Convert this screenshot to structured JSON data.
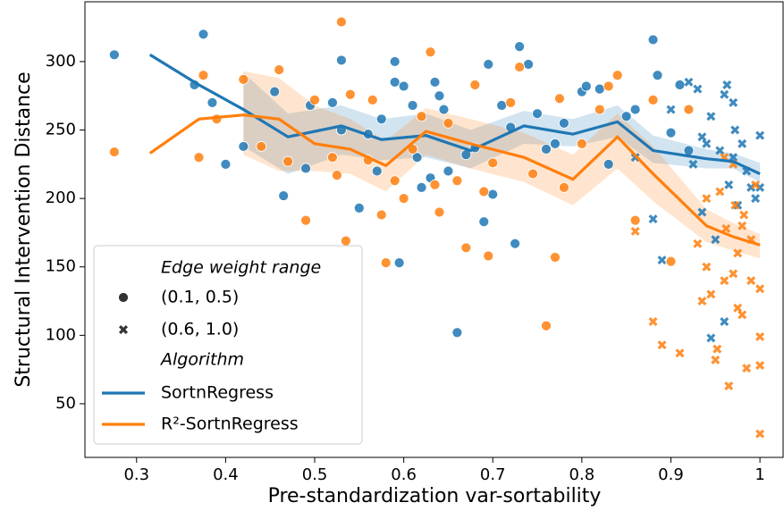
{
  "chart_data": {
    "type": "scatter",
    "x_label": "Pre-standardization var-sortability",
    "y_label": "Structural Intervention Distance",
    "xlim": [
      0.242,
      1.026
    ],
    "ylim": [
      10.8,
      343.7
    ],
    "xticks": [
      0.3,
      0.4,
      0.5,
      0.6,
      0.7,
      0.8,
      0.9,
      1.0
    ],
    "yticks": [
      50,
      100,
      150,
      200,
      250,
      300
    ],
    "marker_legend_title": "Edge weight range",
    "markers": [
      {
        "name": "(0.1, 0.5)",
        "shape": "circle"
      },
      {
        "name": "(0.6, 1.0)",
        "shape": "cross"
      }
    ],
    "algorithm_legend_title": "Algorithm",
    "series": [
      {
        "name": "SortnRegress",
        "color": "#1f77b4",
        "line_x": [
          0.315,
          0.37,
          0.42,
          0.47,
          0.53,
          0.575,
          0.625,
          0.675,
          0.735,
          0.79,
          0.84,
          0.88,
          0.94,
          0.97,
          1.0
        ],
        "values": [
          305,
          283,
          265,
          245,
          253,
          243,
          246,
          235,
          253,
          247,
          256,
          235,
          229,
          227,
          218
        ],
        "band_lower": [
          null,
          null,
          238,
          218,
          232,
          228,
          230,
          222,
          240,
          238,
          245,
          226,
          222,
          222,
          212
        ],
        "band_upper": [
          null,
          null,
          292,
          262,
          268,
          258,
          262,
          250,
          264,
          258,
          268,
          246,
          236,
          233,
          226
        ],
        "points": [
          {
            "x": [
              0.275,
              0.375,
              0.365,
              0.385,
              0.4,
              0.42,
              0.455,
              0.465,
              0.49,
              0.495,
              0.52,
              0.53,
              0.53,
              0.55,
              0.56,
              0.57,
              0.575,
              0.59,
              0.59,
              0.595,
              0.6,
              0.61,
              0.615,
              0.62,
              0.63,
              0.635,
              0.64,
              0.645,
              0.65,
              0.66,
              0.67,
              0.68,
              0.69,
              0.695,
              0.7,
              0.71,
              0.72,
              0.725,
              0.73,
              0.74,
              0.75,
              0.76,
              0.77,
              0.78,
              0.8,
              0.805,
              0.82,
              0.83,
              0.85,
              0.86,
              0.88,
              0.885,
              0.9,
              0.91,
              0.92
            ],
            "values": [
              305,
              320,
              283,
              270,
              225,
              238,
              278,
              202,
              222,
              268,
              270,
              301,
              250,
              193,
              247,
              220,
              258,
              300,
              285,
              153,
              282,
              268,
              230,
              208,
              215,
              285,
              275,
              265,
              220,
              102,
              232,
              237,
              183,
              298,
              203,
              268,
              252,
              167,
              311,
              298,
              262,
              236,
              240,
              255,
              278,
              282,
              280,
              225,
              260,
              265,
              316,
              290,
              248,
              283,
              235
            ]
          },
          {
            "x": [
              0.86,
              0.88,
              0.89,
              0.9,
              0.92,
              0.93,
              0.935,
              0.94,
              0.945,
              0.95,
              0.955,
              0.96,
              0.963,
              0.965,
              0.97,
              0.972,
              0.975,
              0.98,
              0.985,
              0.99,
              1.0,
              1.0,
              0.945,
              0.96,
              0.97,
              0.935,
              0.925,
              0.995
            ],
            "values": [
              230,
              185,
              155,
              265,
              285,
              280,
              190,
              240,
              260,
              170,
              235,
              276,
              283,
              210,
              270,
              250,
              195,
              240,
              220,
              208,
              246,
              208,
              98,
              110,
              230,
              245,
              225,
              200
            ]
          }
        ]
      },
      {
        "name": "R²-SortnRegress",
        "color": "#ff7f0e",
        "line_x": [
          0.315,
          0.37,
          0.42,
          0.46,
          0.5,
          0.54,
          0.58,
          0.625,
          0.675,
          0.735,
          0.79,
          0.84,
          0.88,
          0.94,
          0.97,
          1.0
        ],
        "values": [
          233,
          258,
          261,
          258,
          240,
          236,
          224,
          249,
          240,
          230,
          214,
          245,
          218,
          180,
          172,
          166
        ],
        "band_lower": [
          null,
          null,
          232,
          220,
          220,
          218,
          205,
          232,
          222,
          212,
          195,
          222,
          198,
          168,
          162,
          156
        ],
        "band_upper": [
          null,
          null,
          293,
          288,
          268,
          258,
          242,
          266,
          258,
          248,
          232,
          262,
          238,
          192,
          182,
          174
        ],
        "points": [
          {
            "x": [
              0.275,
              0.37,
              0.375,
              0.39,
              0.42,
              0.44,
              0.46,
              0.47,
              0.49,
              0.5,
              0.52,
              0.525,
              0.53,
              0.535,
              0.54,
              0.56,
              0.565,
              0.575,
              0.58,
              0.59,
              0.6,
              0.61,
              0.62,
              0.63,
              0.635,
              0.64,
              0.65,
              0.66,
              0.67,
              0.68,
              0.69,
              0.695,
              0.7,
              0.72,
              0.73,
              0.745,
              0.76,
              0.77,
              0.775,
              0.78,
              0.8,
              0.82,
              0.83,
              0.84,
              0.86,
              0.88,
              0.9,
              0.92
            ],
            "values": [
              234,
              230,
              290,
              258,
              287,
              238,
              294,
              227,
              184,
              272,
              230,
              217,
              329,
              169,
              276,
              228,
              272,
              188,
              153,
              213,
              200,
              236,
              260,
              307,
              210,
              190,
              255,
              213,
              164,
              283,
              205,
              158,
              226,
              270,
              296,
              218,
              107,
              157,
              273,
              208,
              240,
              265,
              282,
              290,
              184,
              272,
              154,
              265
            ]
          },
          {
            "x": [
              0.86,
              0.88,
              0.89,
              0.91,
              0.93,
              0.935,
              0.94,
              0.945,
              0.95,
              0.952,
              0.955,
              0.96,
              0.962,
              0.965,
              0.97,
              0.972,
              0.975,
              0.98,
              0.982,
              0.985,
              0.99,
              0.995,
              1.0,
              1.0,
              1.0,
              1.0,
              0.97,
              0.98,
              0.99,
              0.96,
              0.94,
              0.975
            ],
            "values": [
              176,
              110,
              93,
              87,
              167,
              125,
              150,
              130,
              82,
              90,
              205,
              140,
              178,
              63,
              225,
              195,
              160,
              115,
              188,
              76,
              140,
              210,
              134,
              99,
              78,
              28,
              145,
              180,
              170,
              230,
              200,
              120
            ]
          }
        ]
      }
    ]
  }
}
